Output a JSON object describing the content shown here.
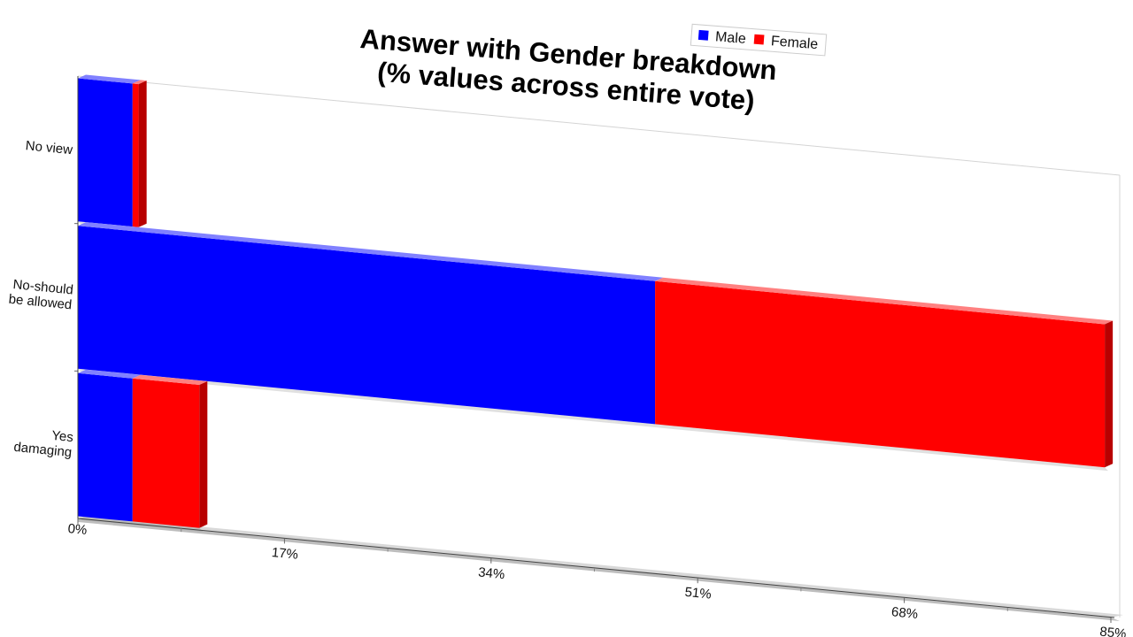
{
  "chart_data": {
    "type": "bar",
    "orientation": "horizontal",
    "stacked": true,
    "title": "Answer with Gender breakdown\n(% values across entire vote)",
    "categories": [
      "No view",
      "No-should\nbe allowed",
      "Yes\ndamaging"
    ],
    "series": [
      {
        "name": "Male",
        "color": "#0000FF",
        "values": [
          4.5,
          47.5,
          4.5
        ]
      },
      {
        "name": "Female",
        "color": "#FF0000",
        "values": [
          0.5,
          37.0,
          5.5
        ]
      }
    ],
    "xlim": [
      0,
      85
    ],
    "xticks": [
      "0%",
      "17%",
      "34%",
      "51%",
      "68%",
      "85%"
    ],
    "grid": false,
    "legend_position": "top-right"
  }
}
